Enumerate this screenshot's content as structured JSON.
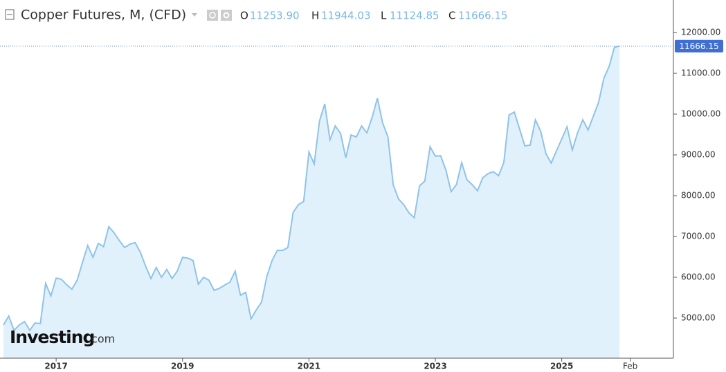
{
  "header": {
    "title": "Copper Futures, M, (CFD)",
    "open_label": "O",
    "open": "11253.90",
    "high_label": "H",
    "high": "11944.03",
    "low_label": "L",
    "low": "11124.85",
    "close_label": "C",
    "close": "11666.15"
  },
  "logo": {
    "brand": "Investing",
    "suffix": ".com"
  },
  "chart_data": {
    "type": "area",
    "categories": [
      null,
      null,
      null,
      null,
      null,
      null,
      null,
      null,
      null,
      null,
      "2017",
      null,
      null,
      null,
      null,
      null,
      null,
      null,
      null,
      null,
      null,
      null,
      null,
      null,
      null,
      null,
      null,
      null,
      null,
      null,
      null,
      null,
      null,
      null,
      "2019",
      null,
      null,
      null,
      null,
      null,
      null,
      null,
      null,
      null,
      null,
      null,
      null,
      null,
      null,
      null,
      null,
      null,
      null,
      null,
      null,
      null,
      null,
      null,
      "2021",
      null,
      null,
      null,
      null,
      null,
      null,
      null,
      null,
      null,
      null,
      null,
      null,
      null,
      null,
      null,
      null,
      null,
      null,
      null,
      null,
      null,
      null,
      null,
      "2023",
      null,
      null,
      null,
      null,
      null,
      null,
      null,
      null,
      null,
      null,
      null,
      null,
      null,
      null,
      null,
      null,
      null,
      null,
      null,
      null,
      null,
      null,
      null,
      "2025",
      null,
      null,
      null,
      null,
      null,
      null,
      null,
      null,
      null,
      null,
      null,
      null,
      "Feb"
    ],
    "values": [
      4830,
      5050,
      4700,
      4830,
      4915,
      4700,
      4880,
      4865,
      5850,
      5540,
      5980,
      5950,
      5815,
      5710,
      5930,
      6360,
      6780,
      6490,
      6830,
      6750,
      7240,
      7090,
      6900,
      6730,
      6810,
      6850,
      6610,
      6270,
      5970,
      6240,
      6000,
      6190,
      5970,
      6150,
      6490,
      6470,
      6410,
      5830,
      6000,
      5930,
      5680,
      5730,
      5810,
      5880,
      6150,
      5560,
      5630,
      4980,
      5200,
      5390,
      6020,
      6410,
      6660,
      6660,
      6730,
      7590,
      7780,
      7860,
      9070,
      8780,
      9830,
      10250,
      9370,
      9710,
      9530,
      8930,
      9490,
      9440,
      9710,
      9540,
      9920,
      10390,
      9780,
      9440,
      8270,
      7920,
      7780,
      7580,
      7460,
      8240,
      8360,
      9200,
      8970,
      8980,
      8630,
      8100,
      8270,
      8810,
      8390,
      8270,
      8120,
      8440,
      8540,
      8590,
      8490,
      8810,
      9980,
      10050,
      9630,
      9220,
      9240,
      9860,
      9580,
      9030,
      8800,
      9100,
      9390,
      9690,
      9120,
      9540,
      9860,
      9610,
      9950,
      10290,
      10880,
      11170,
      11640,
      11666.15,
      null,
      null
    ],
    "line_color": "#8ec3ea",
    "fill_color": "#e1f1fb",
    "price_color": "#3f6fd0",
    "ylim": [
      4017,
      12797
    ],
    "yticks": [
      {
        "value": 5000,
        "label": "5000.00"
      },
      {
        "value": 6000,
        "label": "6000.00"
      },
      {
        "value": 7000,
        "label": "7000.00"
      },
      {
        "value": 8000,
        "label": "8000.00"
      },
      {
        "value": 9000,
        "label": "9000.00"
      },
      {
        "value": 10000,
        "label": "10000.00"
      },
      {
        "value": 11000,
        "label": "11000.00"
      },
      {
        "value": 12000,
        "label": "12000.00"
      }
    ]
  }
}
